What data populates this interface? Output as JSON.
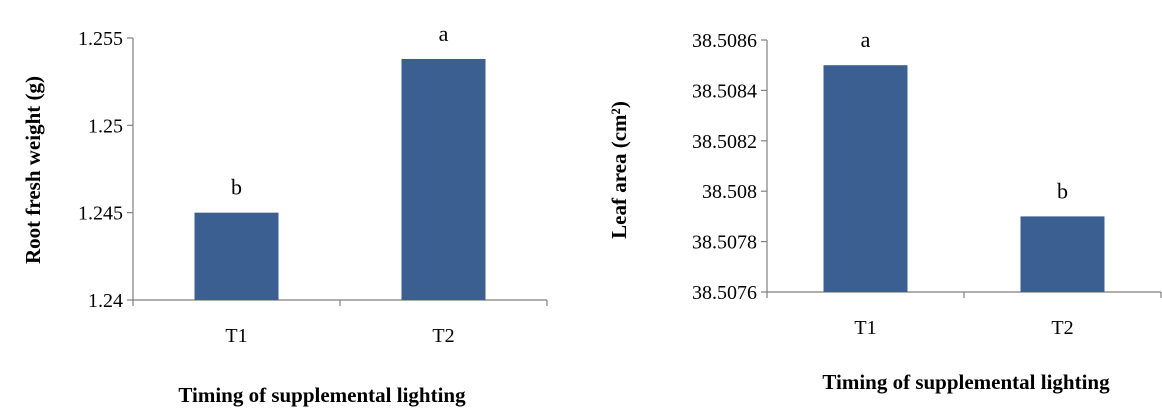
{
  "colors": {
    "bar": "#3c5f91",
    "axis": "#7f7f7f"
  },
  "chart_data": [
    {
      "type": "bar",
      "title": "",
      "xlabel": "Timing of supplemental  lighting",
      "ylabel": "Root  fresh weight (g)",
      "categories": [
        "T1",
        "T2"
      ],
      "values": [
        1.245,
        1.2538
      ],
      "bar_labels": [
        "b",
        "a"
      ],
      "ylim": [
        1.24,
        1.255
      ],
      "yticks": [
        "1.24",
        "1.245",
        "1.25",
        "1.255"
      ],
      "grid": false,
      "legend": "none"
    },
    {
      "type": "bar",
      "title": "",
      "xlabel": "Timing of supplemental  lighting",
      "ylabel": "Leaf   area (cm²)",
      "categories": [
        "T1",
        "T2"
      ],
      "values": [
        38.5085,
        38.5079
      ],
      "bar_labels": [
        "a",
        "b"
      ],
      "ylim": [
        38.5076,
        38.5086
      ],
      "yticks": [
        "38.5076",
        "38.5078",
        "38.508",
        "38.5082",
        "38.5084",
        "38.5086"
      ],
      "grid": false,
      "legend": "none"
    }
  ]
}
